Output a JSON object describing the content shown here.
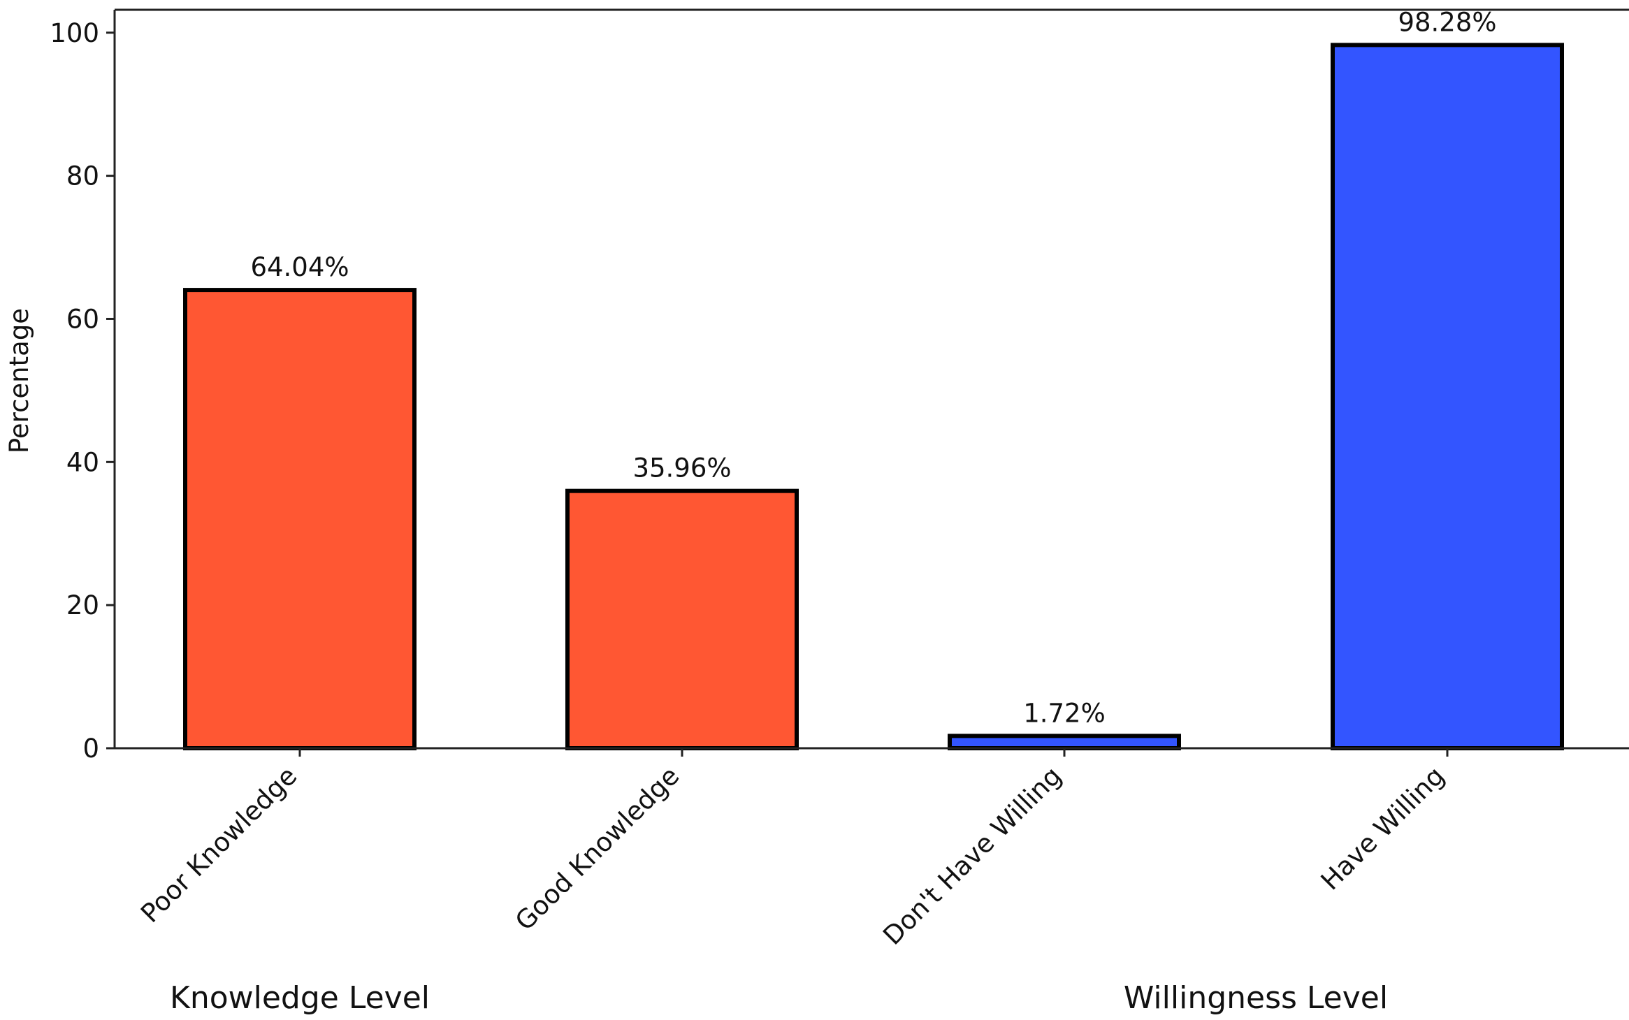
{
  "chart_data": {
    "type": "bar",
    "categories": [
      "Poor Knowledge",
      "Good Knowledge",
      "Don't Have Willing",
      "Have Willing"
    ],
    "values": [
      64.04,
      35.96,
      1.72,
      98.28
    ],
    "value_labels": [
      "64.04%",
      "35.96%",
      "1.72%",
      "98.28%"
    ],
    "bar_colors": [
      "#FF5733",
      "#FF5733",
      "#3355FF",
      "#3355FF"
    ],
    "bar_edge_color": "#000000",
    "ylabel": "Percentage",
    "ylim": [
      0,
      103.2
    ],
    "yticks": [
      0,
      20,
      40,
      60,
      80,
      100
    ],
    "grid": false,
    "groups": [
      {
        "label": "Knowledge Level",
        "categories": [
          "Poor Knowledge",
          "Good Knowledge"
        ]
      },
      {
        "label": "Willingness Level",
        "categories": [
          "Don't Have Willing",
          "Have Willing"
        ]
      }
    ]
  }
}
